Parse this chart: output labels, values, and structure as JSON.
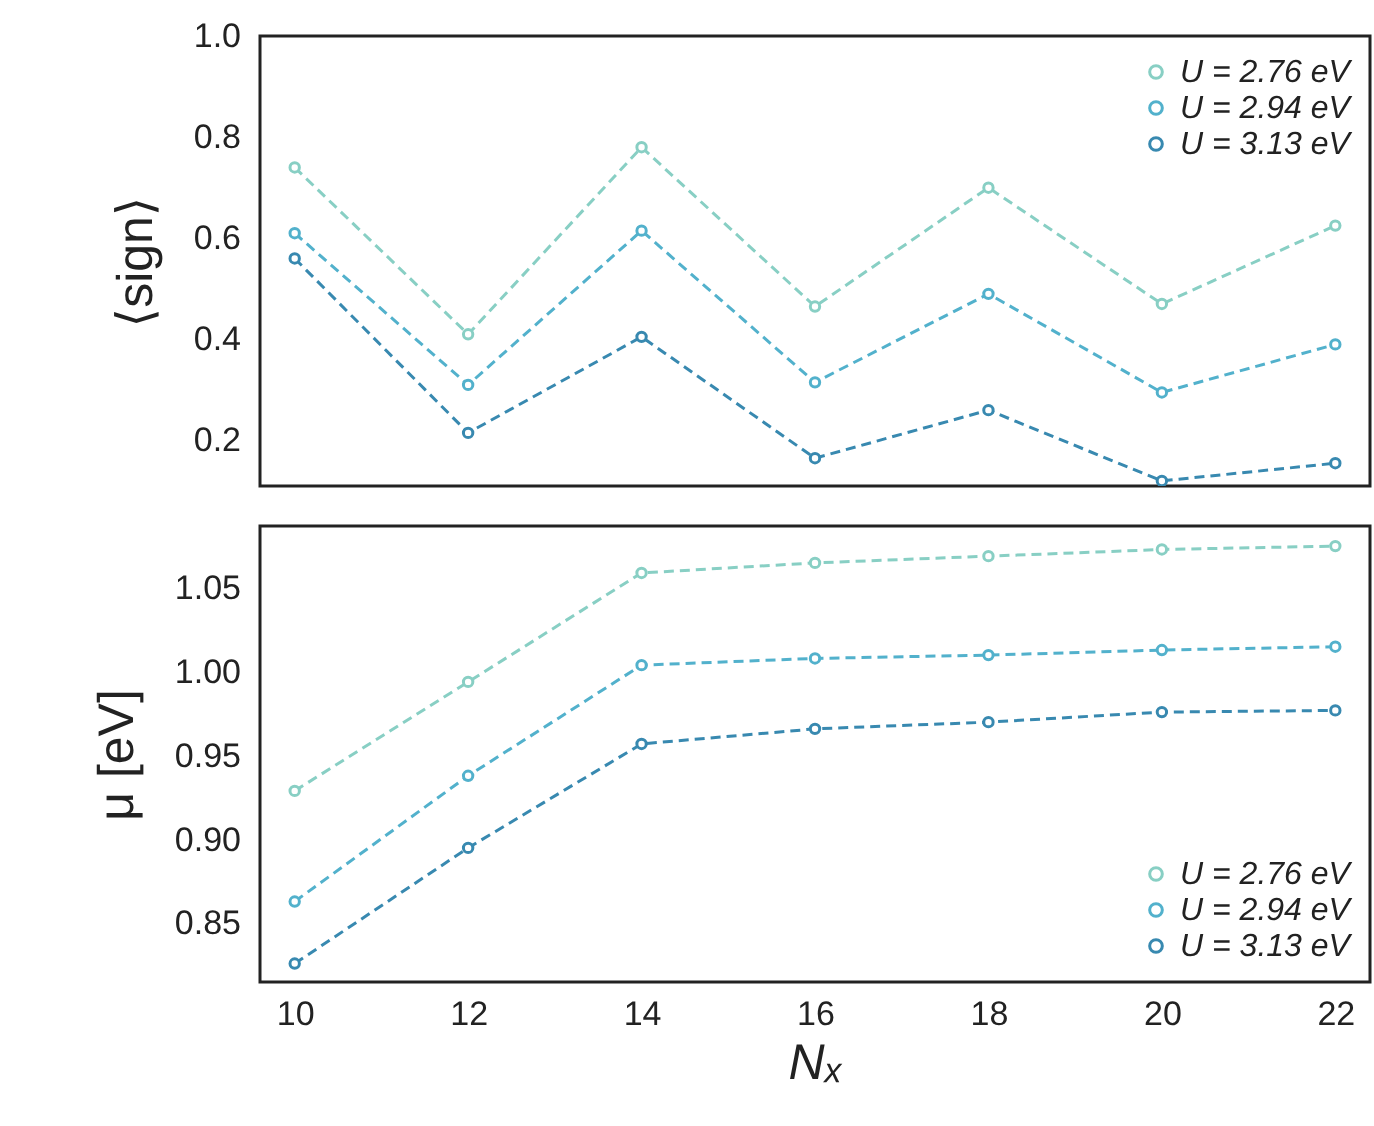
{
  "chart_data": [
    {
      "type": "line",
      "ylabel": "⟨sign⟩",
      "x": [
        10,
        12,
        14,
        16,
        18,
        20,
        22
      ],
      "xlim": [
        9.6,
        22.4
      ],
      "xticks": [
        10,
        12,
        14,
        16,
        18,
        20,
        22
      ],
      "ylim": [
        0.11,
        1.0
      ],
      "yticks": [
        {
          "value": 0.2,
          "label": "0.2"
        },
        {
          "value": 0.4,
          "label": "0.4"
        },
        {
          "value": 0.6,
          "label": "0.6"
        },
        {
          "value": 0.8,
          "label": "0.8"
        },
        {
          "value": 1.0,
          "label": "1.0"
        }
      ],
      "tick_labels": "y",
      "grid": false,
      "legend": "top right",
      "marker": "circle",
      "line_style": "dashed",
      "series": [
        {
          "name": "U = 2.76 eV",
          "color": "#88cfc4",
          "values": [
            0.74,
            0.41,
            0.78,
            0.465,
            0.7,
            0.47,
            0.625
          ]
        },
        {
          "name": "U = 2.94 eV",
          "color": "#52b1cc",
          "values": [
            0.61,
            0.31,
            0.615,
            0.315,
            0.49,
            0.295,
            0.39
          ]
        },
        {
          "name": "U = 3.13 eV",
          "color": "#3889b0",
          "values": [
            0.56,
            0.215,
            0.405,
            0.165,
            0.26,
            0.12,
            0.155
          ]
        }
      ]
    },
    {
      "type": "line",
      "xlabel": "Nₓ",
      "ylabel": "μ [eV]",
      "x": [
        10,
        12,
        14,
        16,
        18,
        20,
        22
      ],
      "xlim": [
        9.6,
        22.4
      ],
      "xticks": [
        10,
        12,
        14,
        16,
        18,
        20,
        22
      ],
      "ylim": [
        0.815,
        1.087
      ],
      "yticks": [
        {
          "value": 0.85,
          "label": "0.85"
        },
        {
          "value": 0.9,
          "label": "0.90"
        },
        {
          "value": 0.95,
          "label": "0.95"
        },
        {
          "value": 1.0,
          "label": "1.00"
        },
        {
          "value": 1.05,
          "label": "1.05"
        }
      ],
      "grid": false,
      "legend": "bottom right",
      "marker": "circle",
      "line_style": "dashed",
      "series": [
        {
          "name": "U = 2.76 eV",
          "color": "#88cfc4",
          "values": [
            0.929,
            0.994,
            1.059,
            1.065,
            1.069,
            1.073,
            1.075
          ]
        },
        {
          "name": "U = 2.94 eV",
          "color": "#52b1cc",
          "values": [
            0.863,
            0.938,
            1.004,
            1.008,
            1.01,
            1.013,
            1.015
          ]
        },
        {
          "name": "U = 3.13 eV",
          "color": "#3889b0",
          "values": [
            0.826,
            0.895,
            0.957,
            0.966,
            0.97,
            0.976,
            0.977
          ]
        }
      ]
    }
  ]
}
